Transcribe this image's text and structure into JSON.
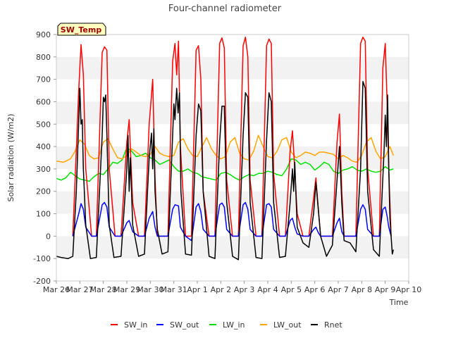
{
  "chart_data": {
    "type": "line",
    "title": "Four-channel radiometer",
    "xlabel": "Time",
    "ylabel": "Solar radiation (W/m2)",
    "badge": "SW_Temp",
    "ylim": [
      -200,
      900
    ],
    "xlim": [
      0,
      15
    ],
    "yticks": [
      -200,
      -100,
      0,
      100,
      200,
      300,
      400,
      500,
      600,
      700,
      800,
      900
    ],
    "xticks": [
      "Mar 26",
      "Mar 27",
      "Mar 28",
      "Mar 29",
      "Mar 30",
      "Mar 31",
      "Apr 1",
      "Apr 2",
      "Apr 3",
      "Apr 4",
      "Apr 5",
      "Apr 6",
      "Apr 7",
      "Apr 8",
      "Apr 9",
      "Apr 10"
    ],
    "grid": "horizontal bands",
    "legend_position": "bottom",
    "x_units": "days since Mar 26 00:00",
    "colors": {
      "SW_in": "#ff0000",
      "SW_out": "#0000ff",
      "LW_in": "#00e000",
      "LW_out": "#ffa500",
      "Rnet": "#000000",
      "band": "#f2f2f2",
      "badge_fill": "#ffffc0",
      "badge_text": "#990000"
    },
    "series": [
      {
        "name": "SW_in",
        "x": [
          0.7,
          0.95,
          1.05,
          1.15,
          1.25,
          1.5,
          1.7,
          1.95,
          2.05,
          2.15,
          2.25,
          2.5,
          2.75,
          3.0,
          3.1,
          3.25,
          3.5,
          3.75,
          3.95,
          4.1,
          4.2,
          4.3,
          4.5,
          4.75,
          4.95,
          5.05,
          5.12,
          5.2,
          5.28,
          5.5,
          5.75,
          5.95,
          6.05,
          6.15,
          6.25,
          6.5,
          6.75,
          6.95,
          7.05,
          7.15,
          7.25,
          7.5,
          7.75,
          7.95,
          8.05,
          8.15,
          8.25,
          8.5,
          8.75,
          8.95,
          9.05,
          9.15,
          9.25,
          9.5,
          9.75,
          9.95,
          10.05,
          10.15,
          10.25,
          10.5,
          10.75,
          10.95,
          11.05,
          11.15,
          11.25,
          11.5,
          11.75,
          11.95,
          12.05,
          12.15,
          12.25,
          12.5,
          12.75,
          12.95,
          13.05,
          13.15,
          13.25,
          13.5,
          13.75,
          13.9,
          14.0,
          14.08,
          14.15,
          14.25
        ],
        "y": [
          0,
          650,
          855,
          720,
          300,
          0,
          0,
          820,
          845,
          830,
          300,
          0,
          0,
          420,
          520,
          150,
          0,
          0,
          500,
          700,
          260,
          0,
          0,
          0,
          780,
          860,
          720,
          870,
          400,
          0,
          0,
          830,
          850,
          700,
          200,
          0,
          0,
          860,
          885,
          840,
          250,
          0,
          0,
          850,
          888,
          800,
          250,
          0,
          0,
          850,
          880,
          860,
          280,
          0,
          0,
          380,
          470,
          300,
          100,
          0,
          0,
          170,
          260,
          120,
          0,
          0,
          0,
          420,
          545,
          200,
          0,
          0,
          0,
          860,
          888,
          870,
          300,
          0,
          0,
          750,
          860,
          600,
          300,
          0
        ]
      },
      {
        "name": "SW_out",
        "x": [
          0.7,
          0.95,
          1.05,
          1.15,
          1.25,
          1.5,
          1.7,
          1.95,
          2.05,
          2.15,
          2.25,
          2.5,
          2.75,
          3.0,
          3.1,
          3.25,
          3.5,
          3.75,
          3.95,
          4.1,
          4.2,
          4.3,
          4.5,
          4.75,
          4.95,
          5.05,
          5.2,
          5.28,
          5.5,
          5.75,
          5.95,
          6.05,
          6.15,
          6.25,
          6.5,
          6.75,
          6.95,
          7.05,
          7.15,
          7.25,
          7.5,
          7.75,
          7.95,
          8.05,
          8.15,
          8.25,
          8.5,
          8.75,
          8.95,
          9.05,
          9.15,
          9.25,
          9.5,
          9.75,
          9.95,
          10.05,
          10.15,
          10.25,
          10.5,
          10.75,
          10.95,
          11.05,
          11.15,
          11.25,
          11.5,
          11.75,
          11.95,
          12.05,
          12.15,
          12.25,
          12.5,
          12.75,
          12.95,
          13.05,
          13.15,
          13.25,
          13.5,
          13.75,
          13.9,
          14.0,
          14.08,
          14.15,
          14.25
        ],
        "y": [
          0,
          100,
          145,
          120,
          40,
          0,
          0,
          140,
          150,
          130,
          40,
          0,
          0,
          60,
          70,
          20,
          0,
          0,
          80,
          110,
          40,
          0,
          0,
          0,
          120,
          140,
          135,
          40,
          0,
          -20,
          130,
          145,
          110,
          30,
          0,
          0,
          140,
          148,
          130,
          30,
          0,
          0,
          140,
          150,
          120,
          30,
          0,
          0,
          140,
          145,
          130,
          30,
          0,
          0,
          70,
          80,
          40,
          10,
          0,
          0,
          30,
          40,
          15,
          0,
          0,
          0,
          60,
          80,
          20,
          0,
          0,
          0,
          120,
          140,
          120,
          30,
          0,
          0,
          120,
          130,
          90,
          40,
          0
        ]
      },
      {
        "name": "LW_in",
        "x": [
          0.0,
          0.2,
          0.4,
          0.6,
          0.8,
          1.0,
          1.2,
          1.4,
          1.6,
          1.8,
          2.0,
          2.2,
          2.4,
          2.6,
          2.8,
          3.0,
          3.2,
          3.4,
          3.6,
          3.8,
          4.0,
          4.2,
          4.4,
          4.6,
          4.8,
          5.0,
          5.2,
          5.4,
          5.6,
          5.8,
          6.0,
          6.2,
          6.4,
          6.6,
          6.8,
          7.0,
          7.2,
          7.4,
          7.6,
          7.8,
          8.0,
          8.2,
          8.4,
          8.6,
          8.8,
          9.0,
          9.2,
          9.4,
          9.6,
          9.8,
          10.0,
          10.2,
          10.4,
          10.6,
          10.8,
          11.0,
          11.2,
          11.4,
          11.6,
          11.8,
          12.0,
          12.2,
          12.4,
          12.6,
          12.8,
          13.0,
          13.2,
          13.4,
          13.6,
          13.8,
          14.0,
          14.2,
          14.35
        ],
        "y": [
          258,
          250,
          260,
          285,
          270,
          255,
          250,
          245,
          265,
          280,
          275,
          300,
          330,
          325,
          340,
          395,
          380,
          355,
          360,
          370,
          350,
          340,
          320,
          330,
          340,
          310,
          290,
          290,
          300,
          285,
          280,
          265,
          260,
          255,
          250,
          280,
          285,
          275,
          260,
          250,
          265,
          275,
          270,
          280,
          280,
          290,
          285,
          275,
          270,
          300,
          345,
          340,
          320,
          330,
          320,
          295,
          310,
          330,
          320,
          290,
          280,
          295,
          300,
          310,
          295,
          290,
          300,
          290,
          285,
          290,
          310,
          295,
          300
        ]
      },
      {
        "name": "LW_out",
        "x": [
          0.0,
          0.3,
          0.6,
          0.8,
          1.0,
          1.2,
          1.4,
          1.6,
          1.8,
          2.0,
          2.2,
          2.4,
          2.6,
          2.8,
          3.0,
          3.2,
          3.4,
          3.6,
          3.8,
          4.0,
          4.2,
          4.4,
          4.6,
          4.8,
          5.0,
          5.2,
          5.4,
          5.6,
          5.8,
          6.0,
          6.2,
          6.4,
          6.6,
          6.8,
          7.0,
          7.2,
          7.4,
          7.6,
          7.8,
          8.0,
          8.2,
          8.4,
          8.6,
          8.8,
          9.0,
          9.2,
          9.4,
          9.6,
          9.8,
          10.0,
          10.2,
          10.4,
          10.6,
          10.8,
          11.0,
          11.2,
          11.4,
          11.6,
          11.8,
          12.0,
          12.2,
          12.4,
          12.6,
          12.8,
          13.0,
          13.2,
          13.4,
          13.6,
          13.8,
          14.0,
          14.2,
          14.35
        ],
        "y": [
          335,
          330,
          345,
          380,
          430,
          410,
          360,
          345,
          350,
          420,
          435,
          390,
          350,
          345,
          360,
          390,
          375,
          360,
          355,
          365,
          400,
          370,
          360,
          355,
          360,
          420,
          435,
          390,
          360,
          355,
          400,
          440,
          390,
          360,
          345,
          355,
          420,
          440,
          370,
          345,
          340,
          380,
          450,
          400,
          355,
          350,
          380,
          430,
          440,
          375,
          350,
          360,
          375,
          370,
          360,
          375,
          375,
          370,
          365,
          345,
          360,
          350,
          335,
          330,
          360,
          420,
          440,
          380,
          345,
          355,
          400,
          360
        ]
      },
      {
        "name": "Rnet",
        "x": [
          0.0,
          0.2,
          0.5,
          0.7,
          0.85,
          0.95,
          1.0,
          1.05,
          1.1,
          1.15,
          1.25,
          1.45,
          1.7,
          1.95,
          2.0,
          2.05,
          2.1,
          2.15,
          2.25,
          2.45,
          2.75,
          3.0,
          3.05,
          3.1,
          3.15,
          3.25,
          3.5,
          3.75,
          3.95,
          4.05,
          4.1,
          4.15,
          4.2,
          4.3,
          4.5,
          4.75,
          4.95,
          5.0,
          5.05,
          5.12,
          5.18,
          5.24,
          5.3,
          5.5,
          5.75,
          5.95,
          6.05,
          6.15,
          6.25,
          6.5,
          6.75,
          6.95,
          7.05,
          7.15,
          7.25,
          7.5,
          7.75,
          7.95,
          8.05,
          8.15,
          8.25,
          8.5,
          8.75,
          8.95,
          9.05,
          9.15,
          9.25,
          9.5,
          9.75,
          9.95,
          10.05,
          10.1,
          10.15,
          10.25,
          10.5,
          10.75,
          10.95,
          11.05,
          11.15,
          11.25,
          11.5,
          11.75,
          11.95,
          12.05,
          12.15,
          12.25,
          12.5,
          12.75,
          12.95,
          13.05,
          13.15,
          13.25,
          13.5,
          13.75,
          13.85,
          13.95,
          14.0,
          14.05,
          14.1,
          14.15,
          14.2,
          14.3,
          14.35
        ],
        "y": [
          -90,
          -95,
          -100,
          -90,
          200,
          510,
          660,
          500,
          520,
          300,
          50,
          -100,
          -95,
          450,
          620,
          600,
          630,
          450,
          50,
          -95,
          -90,
          300,
          450,
          200,
          350,
          50,
          -90,
          -80,
          350,
          460,
          300,
          480,
          200,
          30,
          -80,
          -70,
          450,
          590,
          520,
          660,
          550,
          640,
          200,
          -80,
          -85,
          450,
          590,
          560,
          200,
          -90,
          -100,
          420,
          580,
          580,
          150,
          -90,
          -105,
          450,
          640,
          620,
          150,
          -95,
          -100,
          430,
          640,
          600,
          150,
          -95,
          -90,
          150,
          300,
          200,
          330,
          40,
          -30,
          -50,
          100,
          240,
          120,
          0,
          -90,
          -40,
          250,
          400,
          150,
          -20,
          -30,
          -70,
          300,
          690,
          660,
          200,
          -60,
          -90,
          150,
          380,
          540,
          400,
          630,
          300,
          80,
          -80,
          -60
        ]
      }
    ]
  }
}
